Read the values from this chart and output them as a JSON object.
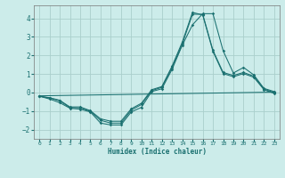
{
  "xlabel": "Humidex (Indice chaleur)",
  "bg_color": "#ccecea",
  "grid_color": "#aacfcc",
  "line_color": "#1a7070",
  "xlim": [
    -0.5,
    23.5
  ],
  "ylim": [
    -2.5,
    4.7
  ],
  "xticks": [
    0,
    1,
    2,
    3,
    4,
    5,
    6,
    7,
    8,
    9,
    10,
    11,
    12,
    13,
    14,
    15,
    16,
    17,
    18,
    19,
    20,
    21,
    22,
    23
  ],
  "yticks": [
    -2,
    -1,
    0,
    1,
    2,
    3,
    4
  ],
  "line1_x": [
    0,
    1,
    2,
    3,
    4,
    5,
    6,
    7,
    8,
    9,
    10,
    11,
    12,
    13,
    14,
    15,
    16,
    17,
    18,
    19,
    20,
    21,
    22,
    23
  ],
  "line1_y": [
    -0.2,
    -0.35,
    -0.55,
    -0.85,
    -0.9,
    -1.05,
    -1.65,
    -1.75,
    -1.75,
    -1.05,
    -0.8,
    0.05,
    0.2,
    1.25,
    2.55,
    3.65,
    4.25,
    4.25,
    2.25,
    1.05,
    1.35,
    0.95,
    0.22,
    0.05
  ],
  "line2_x": [
    0,
    1,
    2,
    3,
    4,
    5,
    6,
    7,
    8,
    9,
    10,
    11,
    12,
    13,
    14,
    15,
    16,
    17,
    18,
    19,
    20,
    21,
    22,
    23
  ],
  "line2_y": [
    -0.2,
    -0.3,
    -0.45,
    -0.82,
    -0.82,
    -1.02,
    -1.5,
    -1.65,
    -1.65,
    -0.95,
    -0.65,
    0.1,
    0.28,
    1.35,
    2.62,
    4.22,
    4.22,
    2.28,
    1.08,
    0.92,
    1.08,
    0.88,
    0.18,
    0.0
  ],
  "line3_x": [
    0,
    1,
    2,
    3,
    4,
    5,
    6,
    7,
    8,
    9,
    10,
    11,
    12,
    13,
    14,
    15,
    16,
    17,
    18,
    19,
    20,
    21,
    22,
    23
  ],
  "line3_y": [
    -0.2,
    -0.28,
    -0.42,
    -0.78,
    -0.78,
    -0.98,
    -1.42,
    -1.55,
    -1.55,
    -0.88,
    -0.58,
    0.15,
    0.32,
    1.42,
    2.72,
    4.32,
    4.18,
    2.22,
    1.02,
    0.85,
    1.02,
    0.82,
    0.15,
    -0.05
  ],
  "trend_x": [
    0,
    23
  ],
  "trend_y": [
    -0.18,
    0.02
  ]
}
